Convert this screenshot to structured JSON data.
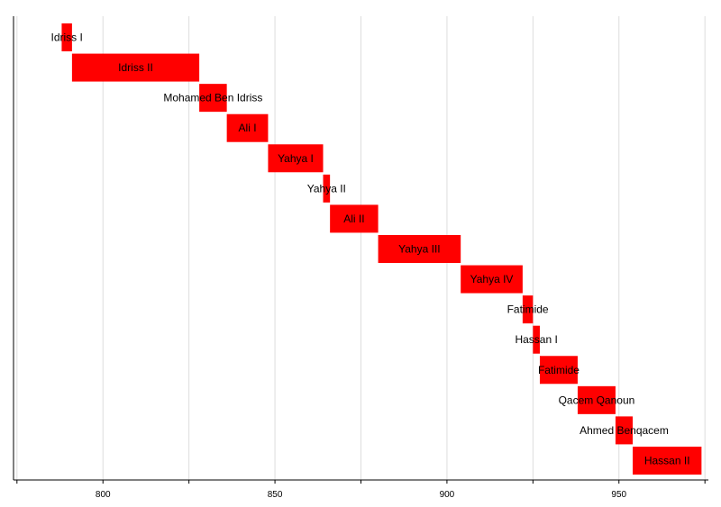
{
  "chart_data": {
    "type": "bar",
    "orientation": "horizontal-timeline",
    "title": "",
    "xlabel": "",
    "ylabel": "",
    "xlim": [
      774,
      976
    ],
    "x_ticks": [
      800,
      850,
      900,
      950
    ],
    "grid": true,
    "bar_color": "#ff0000",
    "grid_color": "#dddddd",
    "axis_color": "#000000",
    "bars": [
      {
        "label": "Idriss I",
        "start": 788,
        "end": 791
      },
      {
        "label": "Idriss II",
        "start": 791,
        "end": 828
      },
      {
        "label": "Mohamed Ben Idriss",
        "start": 828,
        "end": 836
      },
      {
        "label": "Ali I",
        "start": 836,
        "end": 848
      },
      {
        "label": "Yahya I",
        "start": 848,
        "end": 864
      },
      {
        "label": "Yahya II",
        "start": 864,
        "end": 866
      },
      {
        "label": "Ali II",
        "start": 866,
        "end": 880
      },
      {
        "label": "Yahya III",
        "start": 880,
        "end": 904
      },
      {
        "label": "Yahya IV",
        "start": 904,
        "end": 922
      },
      {
        "label": "Fatimide",
        "start": 922,
        "end": 925
      },
      {
        "label": "Hassan I",
        "start": 925,
        "end": 927
      },
      {
        "label": "Fatimide",
        "start": 927,
        "end": 938
      },
      {
        "label": "Qacem Qanoun",
        "start": 938,
        "end": 949
      },
      {
        "label": "Ahmed Benqacem",
        "start": 949,
        "end": 954
      },
      {
        "label": "Hassan II",
        "start": 954,
        "end": 974
      }
    ]
  }
}
